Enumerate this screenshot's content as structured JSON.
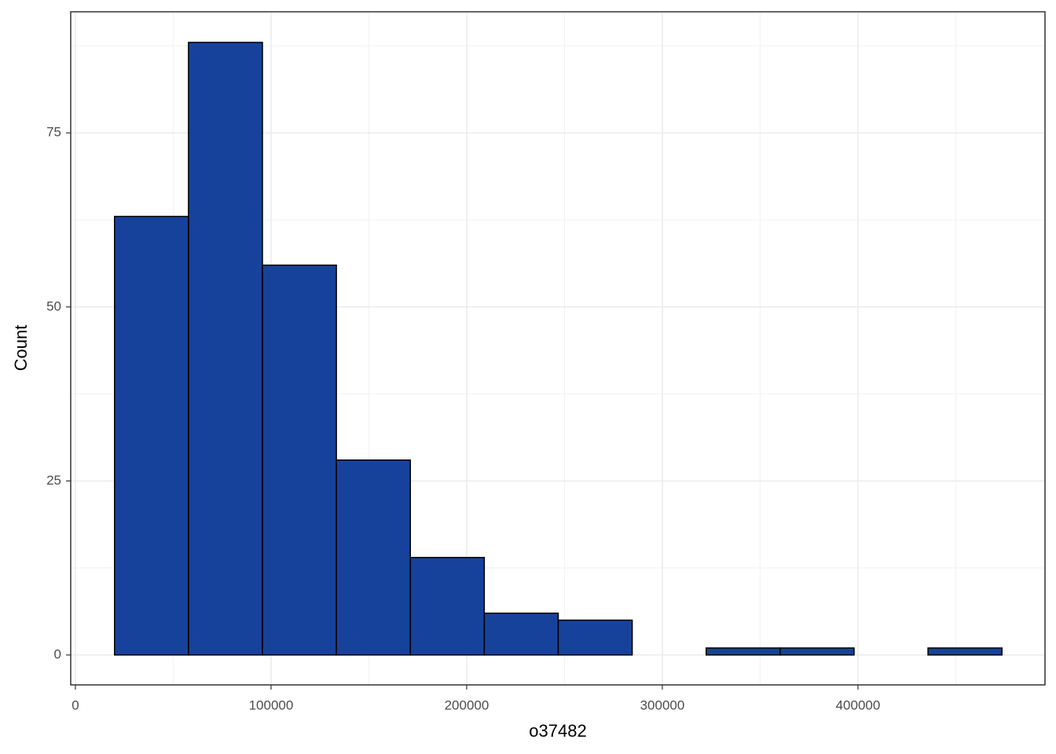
{
  "chart_data": {
    "type": "histogram",
    "x_label": "o37482",
    "y_label": "Count",
    "bins": [
      20000,
      57800,
      95600,
      133400,
      171200,
      209000,
      246800,
      284600,
      322400,
      360200,
      398000,
      435800,
      473600
    ],
    "values": [
      63,
      88,
      56,
      28,
      14,
      6,
      5,
      0,
      1,
      1,
      0,
      1
    ],
    "color": "#17429b",
    "edge_color": "#000000",
    "xlim": [
      -2400,
      495600
    ],
    "ylim": [
      -4.3,
      92.4
    ],
    "xticks": [
      0,
      100000,
      200000,
      300000,
      400000
    ],
    "yticks": [
      0,
      25,
      50,
      75
    ],
    "grid": true
  }
}
